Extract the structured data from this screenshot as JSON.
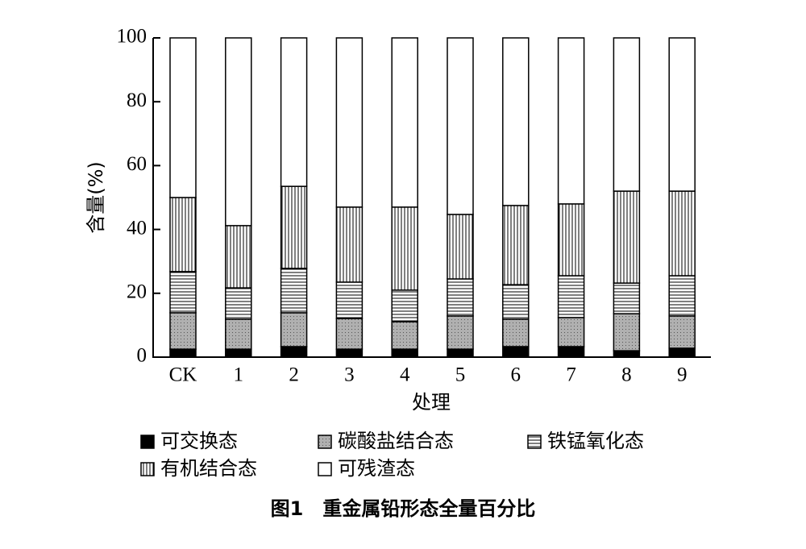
{
  "chart_data": {
    "type": "stacked_bar",
    "title": "图1　重金属铅形态全量百分比",
    "x_label": "处理",
    "y_label": "含量(%)",
    "categories": [
      "CK",
      "1",
      "2",
      "3",
      "4",
      "5",
      "6",
      "7",
      "8",
      "9"
    ],
    "series": [
      {
        "name": "可交换态",
        "color": "#000000",
        "pattern": "solid",
        "values": [
          2.5,
          2.5,
          3.3,
          2.5,
          2.5,
          2.5,
          3.3,
          3.3,
          2,
          2.8
        ]
      },
      {
        "name": "碳酸盐结合态",
        "color": "#aaaaaa",
        "pattern": "dots",
        "values": [
          11.4,
          9.4,
          10.6,
          9.6,
          8.6,
          10.4,
          8.6,
          9.1,
          11.6,
          10.1
        ]
      },
      {
        "name": "铁锰氧化态",
        "color": "#000000",
        "pattern": "hlines",
        "values": [
          12.9,
          9.8,
          13.9,
          11.4,
          9.9,
          11.6,
          10.8,
          13.1,
          9.6,
          12.6
        ]
      },
      {
        "name": "有机结合态",
        "color": "#000000",
        "pattern": "vlines",
        "values": [
          23.2,
          19.5,
          25.7,
          23.5,
          26,
          20.2,
          24.8,
          22.5,
          28.8,
          26.5
        ]
      },
      {
        "name": "可残渣态",
        "color": "#ffffff",
        "pattern": "solid",
        "values": [
          50,
          58.8,
          46.5,
          53,
          53,
          55.3,
          52.5,
          52,
          48,
          48
        ]
      }
    ],
    "ylim": [
      0,
      100
    ],
    "yticks": [
      0,
      20,
      40,
      60,
      80,
      100
    ],
    "grid": false
  }
}
